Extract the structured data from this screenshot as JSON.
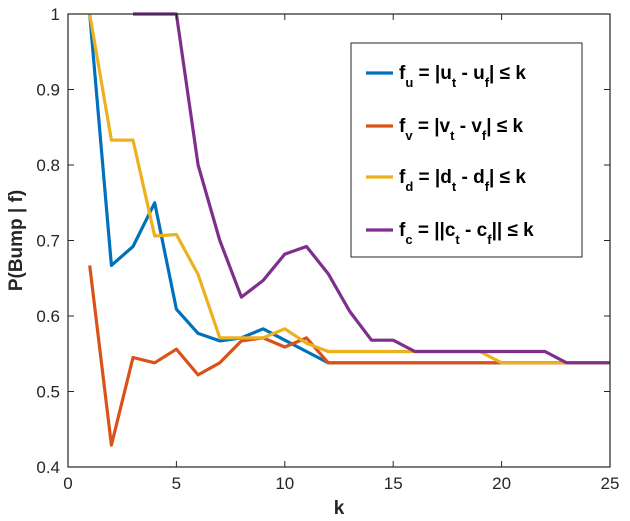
{
  "chart_data": {
    "type": "line",
    "xlabel": "k",
    "ylabel": "P(Bump | f)",
    "xlim": [
      0,
      25
    ],
    "ylim": [
      0.4,
      1
    ],
    "xticks": [
      0,
      5,
      10,
      15,
      20,
      25
    ],
    "yticks": [
      0.4,
      0.5,
      0.6,
      0.7,
      0.8,
      0.9,
      1
    ],
    "xtick_labels": [
      "0",
      "5",
      "10",
      "15",
      "20",
      "25"
    ],
    "ytick_labels": [
      "0.4",
      "0.5",
      "0.6",
      "0.7",
      "0.8",
      "0.9",
      "1"
    ],
    "grid": false,
    "legend_position": "top-right",
    "series": [
      {
        "name": "f_u = |u_t - u_f| ≤ k",
        "legend": {
          "f": "f",
          "fsub": "u",
          "mid1": " = |u",
          "sub1": "t",
          "mid2": " - u",
          "sub2": "f",
          "tail": "| ≤ k"
        },
        "color": "#0072BD",
        "x": [
          1,
          2,
          3,
          4,
          5,
          6,
          7,
          8,
          9,
          10,
          11,
          12,
          13,
          14,
          15,
          16,
          17,
          18,
          19,
          20,
          21,
          22,
          23,
          24,
          25
        ],
        "y": [
          1.0,
          0.667,
          0.692,
          0.75,
          0.609,
          0.577,
          0.567,
          0.571,
          0.583,
          0.568,
          0.553,
          0.538,
          0.538,
          0.538,
          0.538,
          0.538,
          0.538,
          0.538,
          0.538,
          0.538,
          0.538,
          0.538,
          0.538,
          0.538,
          0.538
        ]
      },
      {
        "name": "f_v = |v_t - v_f| ≤ k",
        "legend": {
          "f": "f",
          "fsub": "v",
          "mid1": " = |v",
          "sub1": "t",
          "mid2": " - v",
          "sub2": "f",
          "tail": "| ≤ k"
        },
        "color": "#D95319",
        "x": [
          1,
          2,
          3,
          4,
          5,
          6,
          7,
          8,
          9,
          10,
          11,
          12,
          13,
          14,
          15,
          16,
          17,
          18,
          19,
          20,
          21,
          22,
          23,
          24,
          25
        ],
        "y": [
          0.667,
          0.429,
          0.545,
          0.538,
          0.556,
          0.522,
          0.538,
          0.567,
          0.571,
          0.559,
          0.571,
          0.538,
          0.538,
          0.538,
          0.538,
          0.538,
          0.538,
          0.538,
          0.538,
          0.538,
          0.538,
          0.538,
          0.538,
          0.538,
          0.538
        ]
      },
      {
        "name": "f_d = |d_t - d_f| ≤ k",
        "legend": {
          "f": "f",
          "fsub": "d",
          "mid1": " = |d",
          "sub1": "t",
          "mid2": " - d",
          "sub2": "f",
          "tail": "| ≤ k"
        },
        "color": "#EDB120",
        "x": [
          1,
          2,
          3,
          4,
          5,
          6,
          7,
          8,
          9,
          10,
          11,
          12,
          13,
          14,
          15,
          16,
          17,
          18,
          19,
          20,
          21,
          22,
          23,
          24,
          25
        ],
        "y": [
          1.0,
          0.833,
          0.833,
          0.706,
          0.708,
          0.655,
          0.571,
          0.571,
          0.571,
          0.583,
          0.564,
          0.553,
          0.553,
          0.553,
          0.553,
          0.553,
          0.553,
          0.553,
          0.553,
          0.538,
          0.538,
          0.538,
          0.538,
          0.538,
          0.538
        ]
      },
      {
        "name": "f_c = ||c_t - c_f|| ≤ k",
        "legend": {
          "f": "f",
          "fsub": "c",
          "mid1": " = ||c",
          "sub1": "t",
          "mid2": " - c",
          "sub2": "f",
          "tail": "|| ≤ k"
        },
        "color": "#7E2F8E",
        "x": [
          3,
          4,
          5,
          6,
          7,
          8,
          9,
          10,
          11,
          12,
          13,
          14,
          15,
          16,
          17,
          18,
          19,
          20,
          21,
          22,
          23,
          24,
          25
        ],
        "y": [
          1.0,
          1.0,
          1.0,
          0.8,
          0.7,
          0.625,
          0.647,
          0.682,
          0.692,
          0.656,
          0.606,
          0.568,
          0.568,
          0.553,
          0.553,
          0.553,
          0.553,
          0.553,
          0.553,
          0.553,
          0.538,
          0.538,
          0.538
        ]
      }
    ]
  }
}
